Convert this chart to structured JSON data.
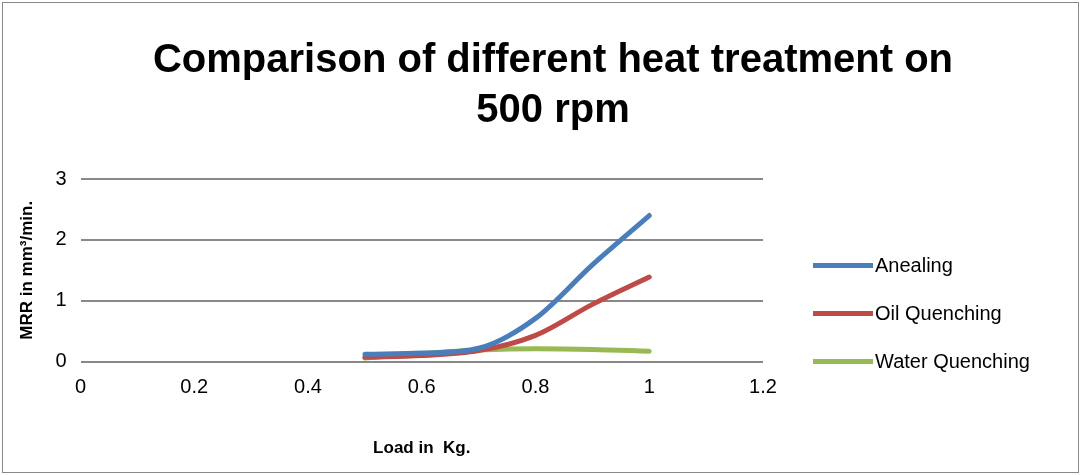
{
  "chart_data": {
    "type": "line",
    "title": "Comparison of different heat treatment on 500 rpm",
    "xlabel": "Load in  Kg.",
    "ylabel": "MRR in mm³/min.",
    "x": [
      0.5,
      0.6,
      0.7,
      0.8,
      0.9,
      1.0
    ],
    "series": [
      {
        "name": "Anealing",
        "color": "#4a7ebb",
        "values": [
          0.12,
          0.14,
          0.22,
          0.71,
          1.59,
          2.4
        ]
      },
      {
        "name": "Oil Quenching",
        "color": "#be4b48",
        "values": [
          0.07,
          0.1,
          0.18,
          0.43,
          0.94,
          1.39
        ]
      },
      {
        "name": "Water Quenching",
        "color": "#98b954",
        "values": [
          0.06,
          0.13,
          0.19,
          0.21,
          0.2,
          0.17
        ]
      }
    ],
    "xlim": [
      0,
      1.2
    ],
    "xticks": [
      0,
      0.2,
      0.4,
      0.6,
      0.8,
      1,
      1.2
    ],
    "ylim": [
      0,
      3
    ],
    "yticks": [
      0,
      1,
      2,
      3
    ],
    "grid": "y",
    "legend": "right",
    "marker": "none"
  }
}
